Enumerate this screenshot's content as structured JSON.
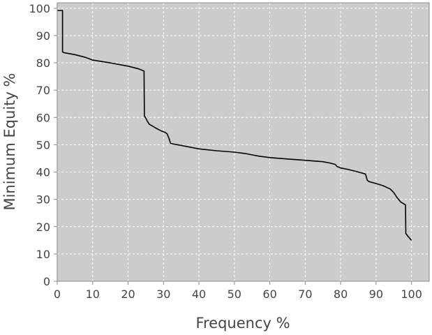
{
  "chart_data": {
    "type": "line",
    "title": "",
    "xlabel": "Frequency %",
    "ylabel": "Minimum Equity %",
    "xlim": [
      0,
      105
    ],
    "ylim": [
      0,
      102
    ],
    "x_ticks": [
      0,
      10,
      20,
      30,
      40,
      50,
      60,
      70,
      80,
      90,
      100
    ],
    "y_ticks": [
      0,
      10,
      20,
      30,
      40,
      50,
      60,
      70,
      80,
      90,
      100
    ],
    "grid": true,
    "legend": "none",
    "colors": {
      "plot_background": "#cccccc",
      "line": "#000000",
      "grid": "#ffffff",
      "frame": "#8a8a8a"
    },
    "series": [
      {
        "x": [
          0,
          1.5,
          1.5,
          2,
          5,
          8,
          10,
          15,
          20,
          23,
          24.5,
          24.6,
          25,
          25.5,
          26,
          28,
          29.5,
          30.5,
          31,
          31.5,
          32,
          40,
          45,
          50,
          53,
          55,
          57,
          60,
          65,
          70,
          75,
          77,
          78.5,
          79,
          79.5,
          80,
          82,
          85,
          87,
          87.2,
          87.5,
          88,
          90,
          92,
          94,
          95,
          96,
          97,
          98.3,
          98.4,
          99,
          100
        ],
        "y": [
          99.2,
          99.2,
          84,
          83.7,
          83,
          82,
          81,
          80,
          78.8,
          77.8,
          77,
          60.5,
          59.8,
          58.5,
          57.5,
          56,
          55,
          54.5,
          54,
          52.5,
          50.5,
          48.5,
          47.8,
          47.3,
          46.8,
          46.3,
          45.8,
          45.3,
          44.8,
          44.3,
          43.8,
          43.3,
          42.8,
          42,
          41.8,
          41.5,
          41,
          40,
          39.3,
          38.5,
          37,
          36.5,
          35.8,
          35,
          33.8,
          32.5,
          30.5,
          29,
          28,
          17.5,
          16.5,
          15
        ]
      }
    ]
  }
}
